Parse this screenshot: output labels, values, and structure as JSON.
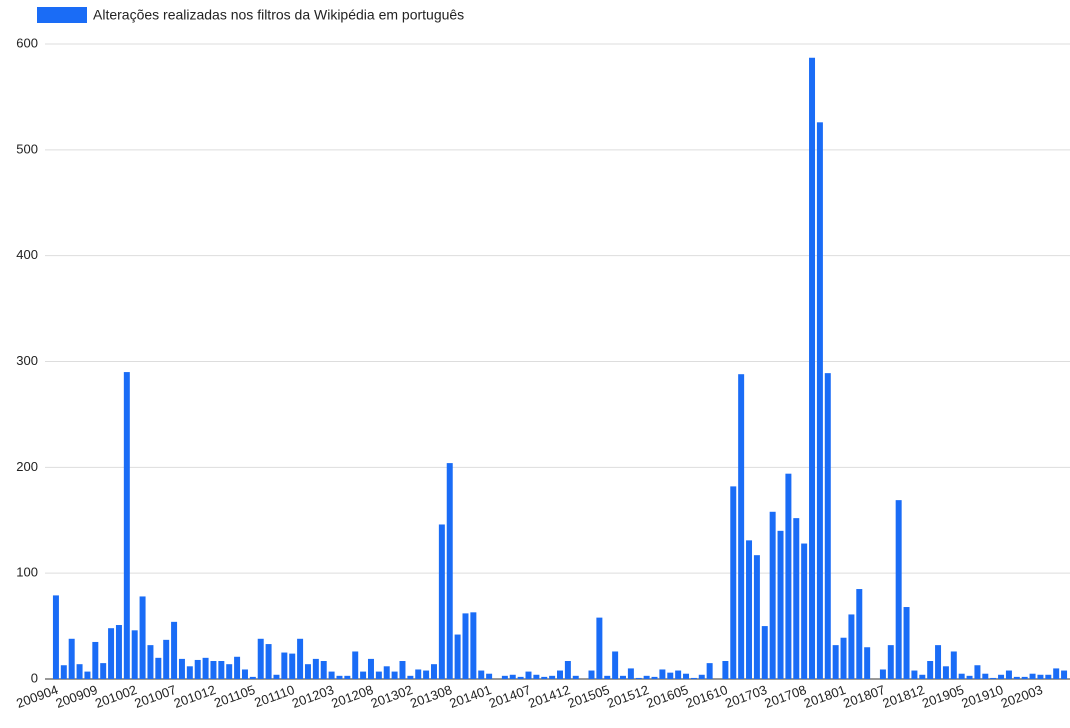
{
  "chart_data": {
    "type": "bar",
    "legend": "Alterações realizadas nos filtros da Wikipédia em português",
    "color": "#1a6cf6",
    "categories": [
      "200904",
      null,
      null,
      null,
      null,
      "200909",
      null,
      null,
      null,
      null,
      "201002",
      null,
      null,
      null,
      null,
      "201007",
      null,
      null,
      null,
      null,
      "201012",
      null,
      null,
      null,
      null,
      "201105",
      null,
      null,
      null,
      null,
      "201110",
      null,
      null,
      null,
      null,
      "201203",
      null,
      null,
      null,
      null,
      "201208",
      null,
      null,
      null,
      null,
      "201302",
      null,
      null,
      null,
      null,
      "201308",
      null,
      null,
      null,
      null,
      "201401",
      null,
      null,
      null,
      null,
      "201407",
      null,
      null,
      null,
      null,
      "201412",
      null,
      null,
      null,
      null,
      "201505",
      null,
      null,
      null,
      null,
      "201512",
      null,
      null,
      null,
      null,
      "201605",
      null,
      null,
      null,
      null,
      "201610",
      null,
      null,
      null,
      null,
      "201703",
      null,
      null,
      null,
      null,
      "201708",
      null,
      null,
      null,
      null,
      "201801",
      null,
      null,
      null,
      null,
      "201807",
      null,
      null,
      null,
      null,
      "201812",
      null,
      null,
      null,
      null,
      "201905",
      null,
      null,
      null,
      null,
      "201910",
      null,
      null,
      null,
      null,
      "202003",
      null,
      null,
      null
    ],
    "values": [
      79,
      13,
      38,
      14,
      7,
      35,
      15,
      48,
      51,
      290,
      46,
      78,
      32,
      20,
      37,
      54,
      19,
      12,
      18,
      20,
      17,
      17,
      14,
      21,
      9,
      2,
      38,
      33,
      4,
      25,
      24,
      38,
      14,
      19,
      17,
      7,
      3,
      3,
      26,
      7,
      19,
      7,
      12,
      7,
      17,
      3,
      9,
      8,
      14,
      146,
      204,
      42,
      62,
      63,
      8,
      5,
      0,
      3,
      4,
      2,
      7,
      4,
      2,
      3,
      8,
      17,
      3,
      0,
      8,
      58,
      3,
      26,
      3,
      10,
      1,
      3,
      2,
      9,
      6,
      8,
      5,
      1,
      4,
      15,
      0,
      17,
      182,
      288,
      131,
      117,
      50,
      158,
      140,
      194,
      152,
      128,
      587,
      526,
      289,
      32,
      39,
      61,
      85,
      30,
      0,
      9,
      32,
      169,
      68,
      8,
      4,
      17,
      32,
      12,
      26,
      5,
      3,
      13,
      5,
      1,
      4,
      8,
      2,
      2,
      5,
      4,
      4,
      10,
      8
    ],
    "ylim": [
      0,
      600
    ],
    "yticks": [
      0,
      100,
      200,
      300,
      400,
      500,
      600
    ],
    "grid": true
  }
}
